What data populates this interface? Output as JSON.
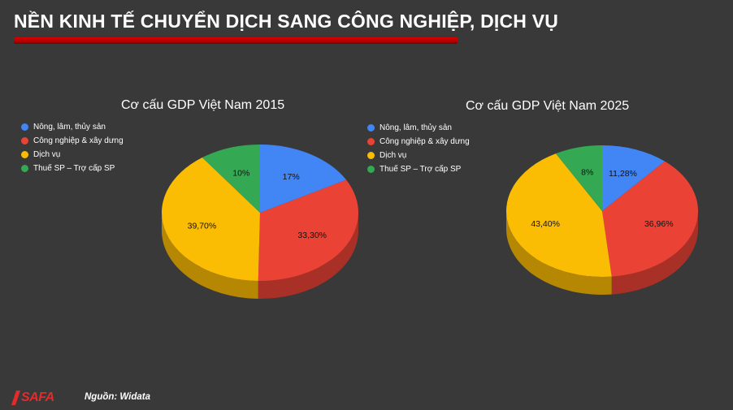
{
  "header": {
    "title": "NỀN KINH TẾ CHUYỂN DỊCH SANG CÔNG NGHIỆP, DỊCH VỤ"
  },
  "colors": {
    "background": "#393939",
    "accent_bar": "#c00000",
    "blue": "#4285f4",
    "red": "#ea4335",
    "yellow": "#fbbc04",
    "green": "#34a853"
  },
  "chart_data": [
    {
      "type": "pie",
      "title": "Cơ cấu GDP Việt Nam 2015",
      "legend_position": "left",
      "categories": [
        "Nông, lâm, thủy sản",
        "Công nghiệp & xây dưng",
        "Dịch vụ",
        "Thuế SP – Trợ cấp SP"
      ],
      "values": [
        17,
        33.3,
        39.7,
        10
      ],
      "labels": [
        "17%",
        "33,30%",
        "39,70%",
        "10%"
      ],
      "colors": [
        "#4285f4",
        "#ea4335",
        "#fbbc04",
        "#34a853"
      ]
    },
    {
      "type": "pie",
      "title": "Cơ cấu GDP Việt Nam 2025",
      "legend_position": "left",
      "categories": [
        "Nông, lâm, thủy sản",
        "Công nghiệp & xây dưng",
        "Dịch vụ",
        "Thuế SP – Trợ cấp SP"
      ],
      "values": [
        11.28,
        36.96,
        43.4,
        8
      ],
      "labels": [
        "11,28%",
        "36,96%",
        "43,40%",
        "8%"
      ],
      "colors": [
        "#4285f4",
        "#ea4335",
        "#fbbc04",
        "#34a853"
      ]
    }
  ],
  "footer": {
    "logo_text": "SAFA",
    "source": "Nguồn: Widata"
  }
}
